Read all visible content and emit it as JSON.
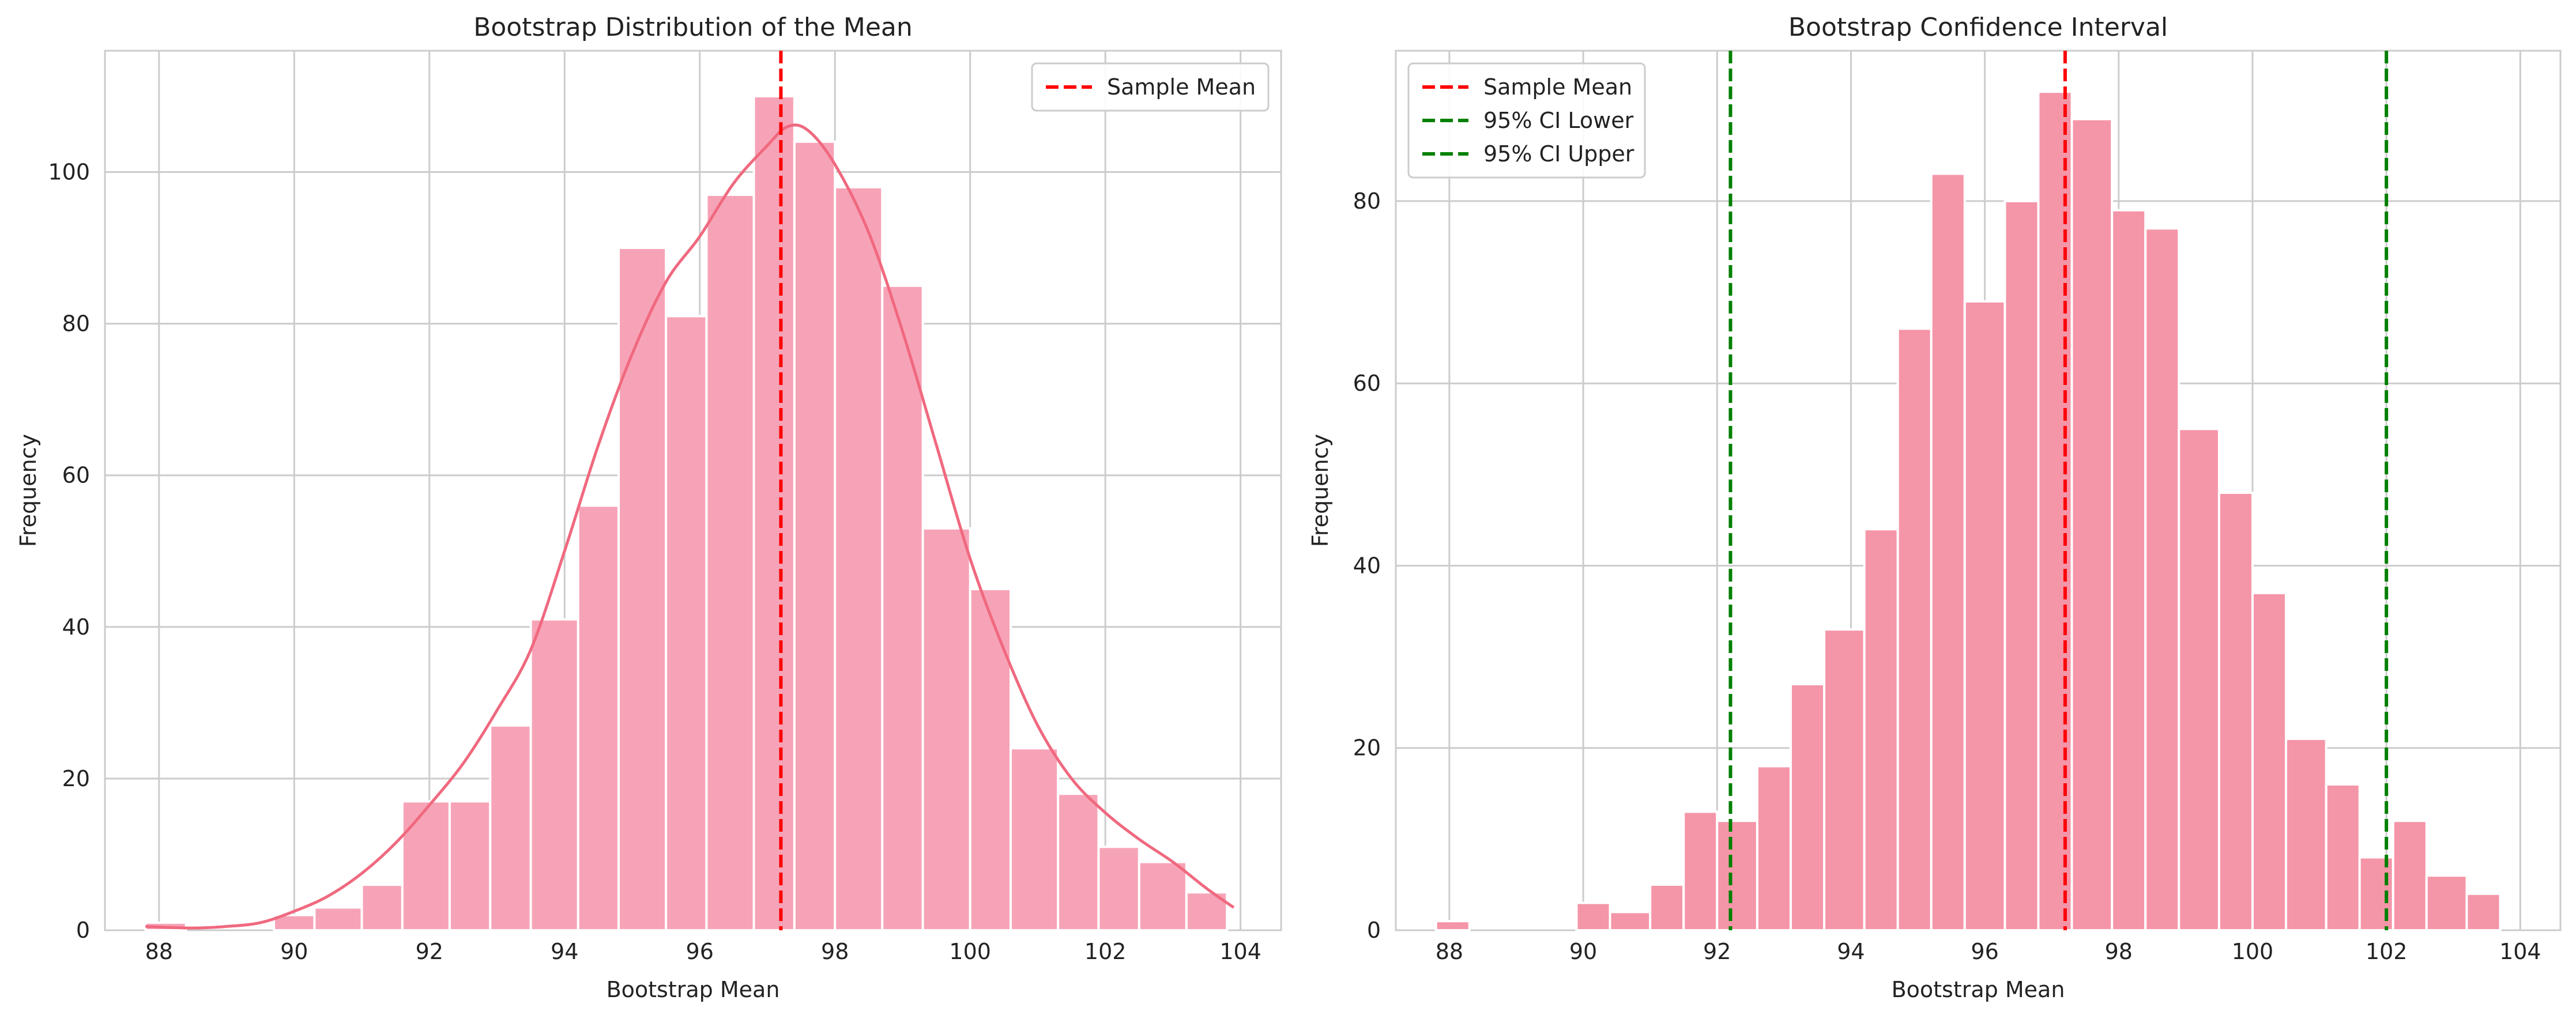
{
  "chart_data": [
    {
      "type": "bar",
      "title": "Bootstrap Distribution of the Mean",
      "xlabel": "Bootstrap Mean",
      "ylabel": "Frequency",
      "xlim": [
        87.2,
        104.6
      ],
      "ylim": [
        0,
        116
      ],
      "xticks": [
        "88",
        "90",
        "92",
        "94",
        "96",
        "98",
        "100",
        "102",
        "104"
      ],
      "yticks": [
        "0",
        "20",
        "40",
        "60",
        "80",
        "100"
      ],
      "grid": true,
      "legend_position": "top-right",
      "bar_color": "#f7a3b7",
      "bins": [
        {
          "x0": 87.8,
          "x1": 88.4,
          "value": 1
        },
        {
          "x0": 88.4,
          "x1": 89.0,
          "value": 0
        },
        {
          "x0": 89.0,
          "x1": 89.6,
          "value": 0
        },
        {
          "x0": 89.7,
          "x1": 90.3,
          "value": 2
        },
        {
          "x0": 90.3,
          "x1": 91.0,
          "value": 3
        },
        {
          "x0": 91.0,
          "x1": 91.6,
          "value": 6
        },
        {
          "x0": 91.6,
          "x1": 92.3,
          "value": 17
        },
        {
          "x0": 92.3,
          "x1": 92.9,
          "value": 17
        },
        {
          "x0": 92.9,
          "x1": 93.5,
          "value": 27
        },
        {
          "x0": 93.5,
          "x1": 94.2,
          "value": 41
        },
        {
          "x0": 94.2,
          "x1": 94.8,
          "value": 56
        },
        {
          "x0": 94.8,
          "x1": 95.5,
          "value": 90
        },
        {
          "x0": 95.5,
          "x1": 96.1,
          "value": 81
        },
        {
          "x0": 96.1,
          "x1": 96.8,
          "value": 97
        },
        {
          "x0": 96.8,
          "x1": 97.4,
          "value": 110
        },
        {
          "x0": 97.4,
          "x1": 98.0,
          "value": 104
        },
        {
          "x0": 98.0,
          "x1": 98.7,
          "value": 98
        },
        {
          "x0": 98.7,
          "x1": 99.3,
          "value": 85
        },
        {
          "x0": 99.3,
          "x1": 100.0,
          "value": 53
        },
        {
          "x0": 100.0,
          "x1": 100.6,
          "value": 45
        },
        {
          "x0": 100.6,
          "x1": 101.3,
          "value": 24
        },
        {
          "x0": 101.3,
          "x1": 101.9,
          "value": 18
        },
        {
          "x0": 101.9,
          "x1": 102.5,
          "value": 11
        },
        {
          "x0": 102.5,
          "x1": 103.2,
          "value": 9
        },
        {
          "x0": 103.2,
          "x1": 103.8,
          "value": 5
        }
      ],
      "kde": {
        "color": "#f0697f",
        "x": [
          87.8,
          88.5,
          89.0,
          89.5,
          90.0,
          90.5,
          91.0,
          91.5,
          92.0,
          92.5,
          93.0,
          93.5,
          94.0,
          94.5,
          95.0,
          95.5,
          96.0,
          96.5,
          97.0,
          97.3,
          97.6,
          98.0,
          98.5,
          99.0,
          99.5,
          100.0,
          100.5,
          101.0,
          101.5,
          102.0,
          102.5,
          103.0,
          103.5,
          103.9
        ],
        "y": [
          0.5,
          0.3,
          0.5,
          1.0,
          2.5,
          4.5,
          7.5,
          11.5,
          16.5,
          22.0,
          29.0,
          37.0,
          50.0,
          64.0,
          76.0,
          85.5,
          91.5,
          98.5,
          103.5,
          106.0,
          105.5,
          101.0,
          92.0,
          79.0,
          64.0,
          49.0,
          37.0,
          27.0,
          20.0,
          15.5,
          12.0,
          9.0,
          5.5,
          3.0
        ]
      },
      "vlines": [
        {
          "label": "Sample Mean",
          "x": 97.2,
          "color": "#ff0000"
        }
      ]
    },
    {
      "type": "bar",
      "title": "Bootstrap Confidence Interval",
      "xlabel": "Bootstrap Mean",
      "ylabel": "Frequency",
      "xlim": [
        87.2,
        104.6
      ],
      "ylim": [
        0,
        96.5
      ],
      "xticks": [
        "88",
        "90",
        "92",
        "94",
        "96",
        "98",
        "100",
        "102",
        "104"
      ],
      "yticks": [
        "0",
        "20",
        "40",
        "60",
        "80"
      ],
      "grid": true,
      "legend_position": "top-left",
      "bar_color": "#f595a8",
      "bins": [
        {
          "x0": 87.8,
          "x1": 88.3,
          "value": 1
        },
        {
          "x0": 88.3,
          "x1": 88.9,
          "value": 0
        },
        {
          "x0": 88.9,
          "x1": 89.4,
          "value": 0
        },
        {
          "x0": 89.4,
          "x1": 89.9,
          "value": 0
        },
        {
          "x0": 89.9,
          "x1": 90.4,
          "value": 3
        },
        {
          "x0": 90.4,
          "x1": 91.0,
          "value": 2
        },
        {
          "x0": 91.0,
          "x1": 91.5,
          "value": 5
        },
        {
          "x0": 91.5,
          "x1": 92.0,
          "value": 13
        },
        {
          "x0": 92.0,
          "x1": 92.6,
          "value": 12
        },
        {
          "x0": 92.6,
          "x1": 93.1,
          "value": 18
        },
        {
          "x0": 93.1,
          "x1": 93.6,
          "value": 27
        },
        {
          "x0": 93.6,
          "x1": 94.2,
          "value": 33
        },
        {
          "x0": 94.2,
          "x1": 94.7,
          "value": 44
        },
        {
          "x0": 94.7,
          "x1": 95.2,
          "value": 66
        },
        {
          "x0": 95.2,
          "x1": 95.7,
          "value": 83
        },
        {
          "x0": 95.7,
          "x1": 96.3,
          "value": 69
        },
        {
          "x0": 96.3,
          "x1": 96.8,
          "value": 80
        },
        {
          "x0": 96.8,
          "x1": 97.3,
          "value": 92
        },
        {
          "x0": 97.3,
          "x1": 97.9,
          "value": 89
        },
        {
          "x0": 97.9,
          "x1": 98.4,
          "value": 79
        },
        {
          "x0": 98.4,
          "x1": 98.9,
          "value": 77
        },
        {
          "x0": 98.9,
          "x1": 99.5,
          "value": 55
        },
        {
          "x0": 99.5,
          "x1": 100.0,
          "value": 48
        },
        {
          "x0": 100.0,
          "x1": 100.5,
          "value": 37
        },
        {
          "x0": 100.5,
          "x1": 101.1,
          "value": 21
        },
        {
          "x0": 101.1,
          "x1": 101.6,
          "value": 16
        },
        {
          "x0": 101.6,
          "x1": 102.1,
          "value": 8
        },
        {
          "x0": 102.1,
          "x1": 102.6,
          "value": 12
        },
        {
          "x0": 102.6,
          "x1": 103.2,
          "value": 6
        },
        {
          "x0": 103.2,
          "x1": 103.7,
          "value": 4
        }
      ],
      "vlines": [
        {
          "label": "Sample Mean",
          "x": 97.2,
          "color": "#ff0000"
        },
        {
          "label": "95% CI Lower",
          "x": 92.2,
          "color": "#008000"
        },
        {
          "label": "95% CI Upper",
          "x": 102.0,
          "color": "#008000"
        }
      ]
    }
  ]
}
